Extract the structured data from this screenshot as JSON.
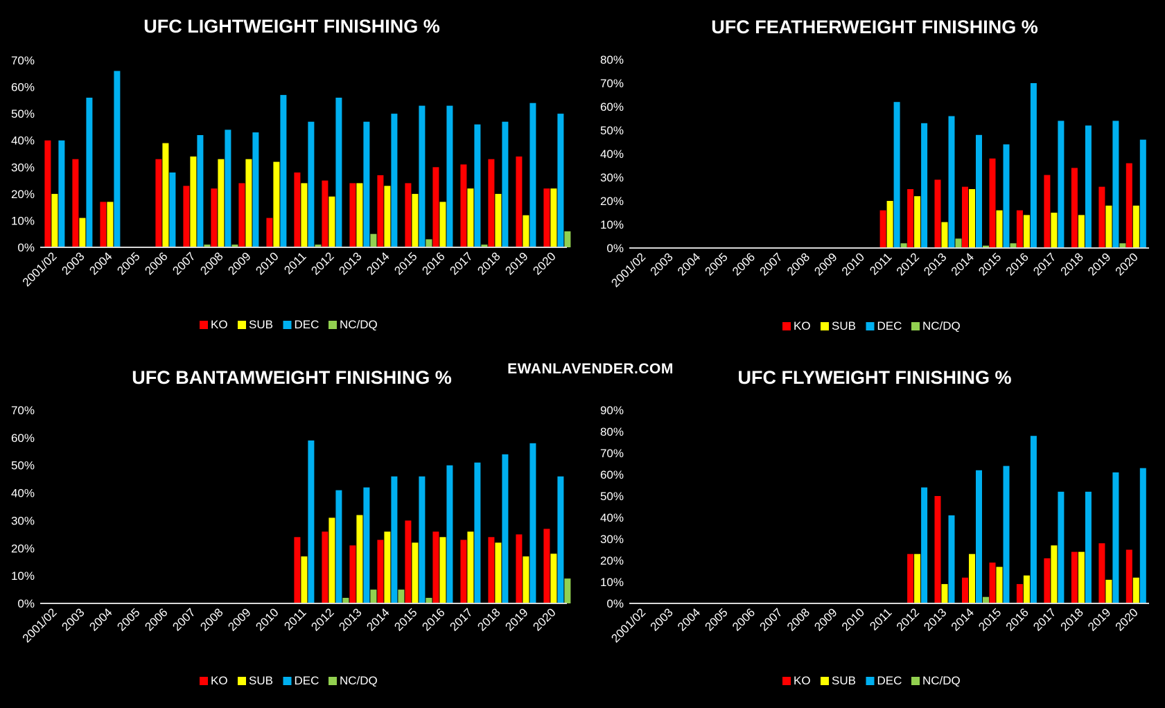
{
  "watermark": "EWANLAVENDER.COM",
  "colors": {
    "KO": "#ff0000",
    "SUB": "#ffff00",
    "DEC": "#00b0f0",
    "NC/DQ": "#92d050",
    "background": "#000000",
    "text": "#ffffff"
  },
  "chart_data": [
    {
      "type": "bar",
      "title": "UFC LIGHTWEIGHT FINISHING %",
      "categories": [
        "2001/02",
        "2003",
        "2004",
        "2005",
        "2006",
        "2007",
        "2008",
        "2009",
        "2010",
        "2011",
        "2012",
        "2013",
        "2014",
        "2015",
        "2016",
        "2017",
        "2018",
        "2019",
        "2020"
      ],
      "ylim": [
        0,
        70
      ],
      "yticks": [
        "0%",
        "10%",
        "20%",
        "30%",
        "40%",
        "50%",
        "60%",
        "70%"
      ],
      "legend": "bottom",
      "series": [
        {
          "name": "KO",
          "values": [
            40,
            33,
            17,
            0,
            33,
            23,
            22,
            24,
            11,
            28,
            25,
            24,
            27,
            24,
            30,
            31,
            33,
            34,
            22
          ]
        },
        {
          "name": "SUB",
          "values": [
            20,
            11,
            17,
            0,
            39,
            34,
            33,
            33,
            32,
            24,
            19,
            24,
            23,
            20,
            17,
            22,
            20,
            12,
            22
          ]
        },
        {
          "name": "DEC",
          "values": [
            40,
            56,
            66,
            0,
            28,
            42,
            44,
            43,
            57,
            47,
            56,
            47,
            50,
            53,
            53,
            46,
            47,
            54,
            50
          ]
        },
        {
          "name": "NC/DQ",
          "values": [
            0,
            0,
            0,
            0,
            0,
            1,
            1,
            0,
            0,
            1,
            0,
            5,
            0,
            3,
            0,
            1,
            0,
            0,
            6
          ]
        }
      ]
    },
    {
      "type": "bar",
      "title": "UFC FEATHERWEIGHT FINISHING %",
      "categories": [
        "2001/02",
        "2003",
        "2004",
        "2005",
        "2006",
        "2007",
        "2008",
        "2009",
        "2010",
        "2011",
        "2012",
        "2013",
        "2014",
        "2015",
        "2016",
        "2017",
        "2018",
        "2019",
        "2020"
      ],
      "ylim": [
        0,
        80
      ],
      "yticks": [
        "0%",
        "10%",
        "20%",
        "30%",
        "40%",
        "50%",
        "60%",
        "70%",
        "80%"
      ],
      "legend": "bottom",
      "series": [
        {
          "name": "KO",
          "values": [
            0,
            0,
            0,
            0,
            0,
            0,
            0,
            0,
            0,
            16,
            25,
            29,
            26,
            38,
            16,
            31,
            34,
            26,
            36
          ]
        },
        {
          "name": "SUB",
          "values": [
            0,
            0,
            0,
            0,
            0,
            0,
            0,
            0,
            0,
            20,
            22,
            11,
            25,
            16,
            14,
            15,
            14,
            18,
            18
          ]
        },
        {
          "name": "DEC",
          "values": [
            0,
            0,
            0,
            0,
            0,
            0,
            0,
            0,
            0,
            62,
            53,
            56,
            48,
            44,
            70,
            54,
            52,
            54,
            46
          ]
        },
        {
          "name": "NC/DQ",
          "values": [
            0,
            0,
            0,
            0,
            0,
            0,
            0,
            0,
            0,
            2,
            0,
            4,
            1,
            2,
            0,
            0,
            0,
            2,
            0
          ]
        }
      ]
    },
    {
      "type": "bar",
      "title": "UFC BANTAMWEIGHT FINISHING %",
      "categories": [
        "2001/02",
        "2003",
        "2004",
        "2005",
        "2006",
        "2007",
        "2008",
        "2009",
        "2010",
        "2011",
        "2012",
        "2013",
        "2014",
        "2015",
        "2016",
        "2017",
        "2018",
        "2019",
        "2020"
      ],
      "ylim": [
        0,
        70
      ],
      "yticks": [
        "0%",
        "10%",
        "20%",
        "30%",
        "40%",
        "50%",
        "60%",
        "70%"
      ],
      "legend": "bottom",
      "series": [
        {
          "name": "KO",
          "values": [
            0,
            0,
            0,
            0,
            0,
            0,
            0,
            0,
            0,
            24,
            26,
            21,
            23,
            30,
            26,
            23,
            24,
            25,
            27
          ]
        },
        {
          "name": "SUB",
          "values": [
            0,
            0,
            0,
            0,
            0,
            0,
            0,
            0,
            0,
            17,
            31,
            32,
            26,
            22,
            24,
            26,
            22,
            17,
            18
          ]
        },
        {
          "name": "DEC",
          "values": [
            0,
            0,
            0,
            0,
            0,
            0,
            0,
            0,
            0,
            59,
            41,
            42,
            46,
            46,
            50,
            51,
            54,
            58,
            46
          ]
        },
        {
          "name": "NC/DQ",
          "values": [
            0,
            0,
            0,
            0,
            0,
            0,
            0,
            0,
            0,
            0,
            2,
            5,
            5,
            2,
            0,
            0,
            0,
            0,
            9
          ]
        }
      ]
    },
    {
      "type": "bar",
      "title": "UFC FLYWEIGHT FINISHING %",
      "categories": [
        "2001/02",
        "2003",
        "2004",
        "2005",
        "2006",
        "2007",
        "2008",
        "2009",
        "2010",
        "2011",
        "2012",
        "2013",
        "2014",
        "2015",
        "2016",
        "2017",
        "2018",
        "2019",
        "2020"
      ],
      "ylim": [
        0,
        90
      ],
      "yticks": [
        "0%",
        "10%",
        "20%",
        "30%",
        "40%",
        "50%",
        "60%",
        "70%",
        "80%",
        "90%"
      ],
      "legend": "bottom",
      "series": [
        {
          "name": "KO",
          "values": [
            0,
            0,
            0,
            0,
            0,
            0,
            0,
            0,
            0,
            0,
            23,
            50,
            12,
            19,
            9,
            21,
            24,
            28,
            25
          ]
        },
        {
          "name": "SUB",
          "values": [
            0,
            0,
            0,
            0,
            0,
            0,
            0,
            0,
            0,
            0,
            23,
            9,
            23,
            17,
            13,
            27,
            24,
            11,
            12
          ]
        },
        {
          "name": "DEC",
          "values": [
            0,
            0,
            0,
            0,
            0,
            0,
            0,
            0,
            0,
            0,
            54,
            41,
            62,
            64,
            78,
            52,
            52,
            61,
            63
          ]
        },
        {
          "name": "NC/DQ",
          "values": [
            0,
            0,
            0,
            0,
            0,
            0,
            0,
            0,
            0,
            0,
            0,
            0,
            3,
            0,
            0,
            0,
            0,
            0,
            0
          ]
        }
      ]
    }
  ]
}
